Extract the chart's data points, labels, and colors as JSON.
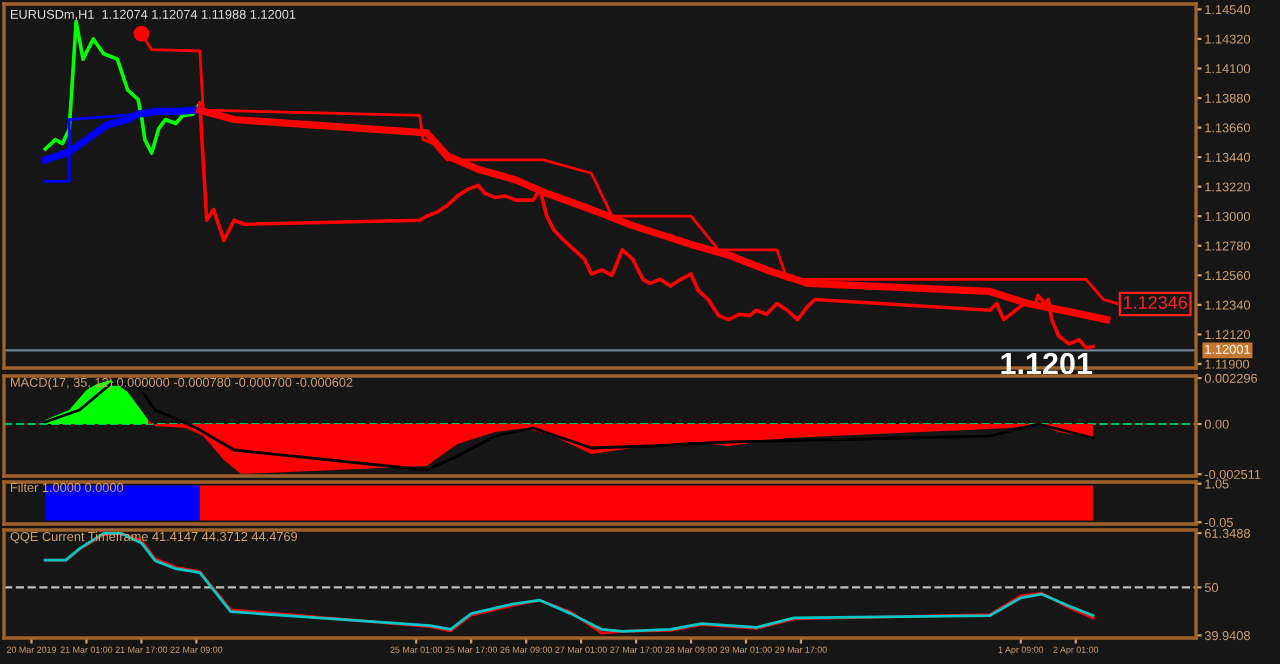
{
  "chart_data": [
    {
      "type": "line",
      "title": "EURUSDm,H1  1.12074 1.12074 1.11988 1.12001",
      "xlim": [
        "2019-03-20T01:00",
        "2019-04-03T12:00"
      ],
      "ylim": [
        1.1187,
        1.1458
      ],
      "tick_labels": "y",
      "yticks": [
        {
          "value": 1.1454,
          "label": "1.14540"
        },
        {
          "value": 1.1432,
          "label": "1.14320"
        },
        {
          "value": 1.141,
          "label": "1.14100"
        },
        {
          "value": 1.1388,
          "label": "1.13880"
        },
        {
          "value": 1.1366,
          "label": "1.13660"
        },
        {
          "value": 1.1344,
          "label": "1.13440"
        },
        {
          "value": 1.1322,
          "label": "1.13220"
        },
        {
          "value": 1.13,
          "label": "1.13000"
        },
        {
          "value": 1.1278,
          "label": "1.12780"
        },
        {
          "value": 1.1256,
          "label": "1.12560"
        },
        {
          "value": 1.1234,
          "label": "1.12340"
        },
        {
          "value": 1.1212,
          "label": "1.12120"
        },
        {
          "value": 1.119,
          "label": "1.11900"
        }
      ],
      "series": [
        {
          "color": "#00ff00",
          "x": [
            "2019-03-20T13:00",
            "2019-03-20T16:00",
            "2019-03-20T18:00",
            "2019-03-20T20:00",
            "2019-03-20T22:00",
            "2019-03-21T00:00",
            "2019-03-21T03:00",
            "2019-03-21T06:00",
            "2019-03-21T10:00",
            "2019-03-21T13:00",
            "2019-03-21T16:00",
            "2019-03-21T17:00",
            "2019-03-21T18:00",
            "2019-03-21T20:00",
            "2019-03-21T22:00",
            "2019-03-22T00:00",
            "2019-03-22T03:00",
            "2019-03-22T05:00",
            "2019-03-22T08:00",
            "2019-03-22T10:00"
          ],
          "values": [
            1.135,
            1.1357,
            1.1354,
            1.1365,
            1.1445,
            1.1417,
            1.1432,
            1.1421,
            1.1417,
            1.1394,
            1.1387,
            1.1375,
            1.1357,
            1.1347,
            1.1365,
            1.1372,
            1.1369,
            1.1375,
            1.1376,
            1.1384
          ]
        },
        {
          "color": "#ff0000",
          "x": [
            "2019-03-22T10:00",
            "2019-03-22T12:00",
            "2019-03-22T14:00",
            "2019-03-22T17:00",
            "2019-03-22T20:00",
            "2019-03-22T23:00",
            "2019-03-25T02:00",
            "2019-03-25T04:00",
            "2019-03-25T07:00",
            "2019-03-25T10:00",
            "2019-03-25T13:00",
            "2019-03-25T16:00",
            "2019-03-25T19:00",
            "2019-03-25T21:00",
            "2019-03-26T00:00",
            "2019-03-26T03:00",
            "2019-03-26T06:00",
            "2019-03-26T09:00",
            "2019-03-26T11:00",
            "2019-03-26T13:00",
            "2019-03-26T15:00",
            "2019-03-26T17:00",
            "2019-03-26T20:00",
            "2019-03-26T23:00",
            "2019-03-27T02:00",
            "2019-03-27T04:00",
            "2019-03-27T07:00",
            "2019-03-27T10:00",
            "2019-03-27T13:00",
            "2019-03-27T16:00",
            "2019-03-27T19:00",
            "2019-03-27T21:00",
            "2019-03-28T00:00",
            "2019-03-28T03:00",
            "2019-03-28T06:00",
            "2019-03-28T09:00",
            "2019-03-28T11:00",
            "2019-03-28T14:00",
            "2019-03-28T17:00",
            "2019-03-28T20:00",
            "2019-03-28T23:00",
            "2019-03-29T02:00",
            "2019-03-29T04:00",
            "2019-03-29T07:00",
            "2019-03-29T10:00",
            "2019-03-29T13:00",
            "2019-03-29T16:00",
            "2019-03-29T19:00",
            "2019-03-29T21:00",
            "2019-04-01T00:00",
            "2019-04-01T02:00",
            "2019-04-01T04:00",
            "2019-04-01T07:00",
            "2019-04-01T10:00",
            "2019-04-01T13:00",
            "2019-04-01T14:00",
            "2019-04-01T16:00",
            "2019-04-01T17:00",
            "2019-04-01T18:00",
            "2019-04-01T20:00",
            "2019-04-01T23:00",
            "2019-04-02T02:00",
            "2019-04-02T04:00",
            "2019-04-02T06:00"
          ],
          "values": [
            1.1384,
            1.1297,
            1.1305,
            1.1282,
            1.1297,
            1.1294,
            1.1297,
            1.13,
            1.1303,
            1.1308,
            1.1315,
            1.132,
            1.1323,
            1.1317,
            1.1314,
            1.1315,
            1.1312,
            1.1312,
            1.1312,
            1.132,
            1.13,
            1.129,
            1.1282,
            1.1275,
            1.1268,
            1.1257,
            1.126,
            1.1256,
            1.1275,
            1.1268,
            1.1253,
            1.125,
            1.1253,
            1.1248,
            1.1253,
            1.1257,
            1.1245,
            1.1238,
            1.1226,
            1.1223,
            1.1227,
            1.1226,
            1.123,
            1.1227,
            1.1235,
            1.123,
            1.1223,
            1.1233,
            1.1238,
            1.123,
            1.1235,
            1.1223,
            1.1229,
            1.1235,
            1.1233,
            1.1241,
            1.1235,
            1.1238,
            1.1223,
            1.1211,
            1.1205,
            1.1208,
            1.1202,
            1.1203
          ]
        },
        {
          "color": "#0000ff",
          "x": [
            "2019-03-20T13:00",
            "2019-03-20T20:00",
            "2019-03-21T01:00",
            "2019-03-21T07:00",
            "2019-03-21T13:00",
            "2019-03-21T16:00",
            "2019-03-21T21:00",
            "2019-03-22T03:00",
            "2019-03-22T10:00"
          ],
          "values": [
            1.1342,
            1.1348,
            1.1357,
            1.1368,
            1.1372,
            1.1376,
            1.1378,
            1.1378,
            1.1379
          ]
        },
        {
          "color": "#ff0000",
          "x": [
            "2019-03-22T10:00",
            "2019-03-22T20:00",
            "2019-03-25T04:00",
            "2019-03-25T10:00",
            "2019-03-25T19:00",
            "2019-03-26T06:00",
            "2019-03-26T14:00",
            "2019-03-27T04:00",
            "2019-03-27T16:00",
            "2019-03-28T09:00",
            "2019-03-28T20:00",
            "2019-03-29T07:00",
            "2019-03-29T19:00",
            "2019-04-01T00:00",
            "2019-04-01T11:00",
            "2019-04-01T23:00",
            "2019-04-02T10:00"
          ],
          "values": [
            1.1379,
            1.1372,
            1.1362,
            1.1345,
            1.1335,
            1.1327,
            1.1318,
            1.1305,
            1.1293,
            1.1279,
            1.1271,
            1.126,
            1.125,
            1.1244,
            1.1235,
            1.1229,
            1.1223
          ]
        },
        {
          "color": "#0000ff",
          "x": [
            "2019-03-20T13:00",
            "2019-03-20T20:00",
            "2019-03-20T20:00",
            "2019-03-21T16:00"
          ],
          "values": [
            1.1326,
            1.1326,
            1.1372,
            1.1376
          ]
        },
        {
          "color": "#ff0000",
          "x": [
            "2019-03-21T17:00",
            "2019-03-21T20:00",
            "2019-03-22T10:00",
            "2019-03-22T11:00",
            "2019-03-25T02:00",
            "2019-03-25T03:00",
            "2019-03-25T06:00",
            "2019-03-25T10:00",
            "2019-03-26T14:00",
            "2019-03-27T04:00",
            "2019-03-27T10:00",
            "2019-03-28T09:00",
            "2019-03-28T17:00",
            "2019-03-29T10:00",
            "2019-03-29T13:00",
            "2019-04-02T04:00",
            "2019-04-02T09:00",
            "2019-04-02T13:00"
          ],
          "values": [
            1.1436,
            1.1424,
            1.1423,
            1.1379,
            1.1375,
            1.1357,
            1.1354,
            1.1342,
            1.1342,
            1.1332,
            1.13,
            1.13,
            1.1275,
            1.1275,
            1.1253,
            1.1253,
            1.1238,
            1.1235
          ]
        },
        {
          "type": "scatter",
          "marker": "circle",
          "color": "#ff0000",
          "x": [
            "2019-03-21T17:00"
          ],
          "values": [
            1.1436
          ]
        }
      ],
      "ref_lines": [
        {
          "axis": "y",
          "value": 1.12001,
          "label": "1.12001",
          "color": "#708090"
        }
      ],
      "annotations": [
        {
          "text": "1.12346",
          "x": "2019-04-02T13:00",
          "y": 1.12346
        },
        {
          "text": "1.1201",
          "x": "2019-04-02T06:00",
          "y": 1.1201
        }
      ]
    },
    {
      "type": "area",
      "title": "MACD(17, 35, 12) 0.000000 -0.000780 -0.000700 -0.000602",
      "xlim": [
        "2019-03-20T01:00",
        "2019-04-03T12:00"
      ],
      "ylim": [
        -0.0026,
        0.0024
      ],
      "tick_labels": "y",
      "yticks": [
        {
          "value": 0.002296,
          "label": "0.002296"
        },
        {
          "value": 0,
          "label": "0.00"
        },
        {
          "value": -0.002511,
          "label": "-0.002511"
        }
      ],
      "series": [
        {
          "color": "#00ff00",
          "x": [
            "2019-03-20T13:00",
            "2019-03-20T20:00",
            "2019-03-21T01:00",
            "2019-03-21T04:00",
            "2019-03-21T08:00",
            "2019-03-21T13:00",
            "2019-03-21T19:00"
          ],
          "values": [
            0.0002,
            0.0007,
            0.0017,
            0.002,
            0.0022,
            0.0016,
            0.0002
          ]
        },
        {
          "color": "#ff0000",
          "x": [
            "2019-03-21T19:00",
            "2019-03-21T21:00",
            "2019-03-22T06:00",
            "2019-03-22T11:00",
            "2019-03-22T17:00",
            "2019-03-22T22:00",
            "2019-03-25T04:00",
            "2019-03-25T13:00",
            "2019-03-26T00:00",
            "2019-03-26T09:00",
            "2019-03-26T17:00",
            "2019-03-27T04:00",
            "2019-03-27T16:00",
            "2019-03-28T09:00",
            "2019-03-28T20:00",
            "2019-03-29T13:00",
            "2019-04-01T06:00",
            "2019-04-01T14:00",
            "2019-04-01T20:00",
            "2019-04-02T06:00"
          ],
          "values": [
            0.0002,
            -0.0001,
            -0.0002,
            -0.0006,
            -0.0018,
            -0.0025,
            -0.0021,
            -0.001,
            -0.0004,
            -0.0002,
            -0.0006,
            -0.0015,
            -0.0012,
            -0.0009,
            -0.0011,
            -0.0007,
            -0.0002,
            0,
            -0.0004,
            -0.0007
          ]
        },
        {
          "type": "line",
          "color": "#000000",
          "x": [
            "2019-03-20T13:00",
            "2019-03-20T23:00",
            "2019-03-21T08:00",
            "2019-03-21T16:00",
            "2019-03-21T21:00",
            "2019-03-22T09:00",
            "2019-03-22T20:00",
            "2019-03-25T04:00",
            "2019-03-25T13:00",
            "2019-03-26T00:00",
            "2019-03-26T11:00",
            "2019-03-27T04:00",
            "2019-03-27T21:00",
            "2019-03-28T20:00",
            "2019-04-01T00:00",
            "2019-04-01T14:00",
            "2019-04-02T06:00"
          ],
          "values": [
            0.0001,
            0.0007,
            0.002,
            0.0019,
            0.0007,
            -0.0002,
            -0.0013,
            -0.0023,
            -0.0016,
            -0.0006,
            -0.0002,
            -0.0012,
            -0.0011,
            -0.0009,
            -0.0006,
            0,
            -0.0007
          ]
        }
      ],
      "ref_lines": [
        {
          "axis": "y",
          "value": 0,
          "color": "#00c060",
          "line_style": "dashed"
        }
      ]
    },
    {
      "type": "area",
      "title": "Filter 1.0000 0.0000",
      "xlim": [
        "2019-03-20T01:00",
        "2019-04-03T12:00"
      ],
      "ylim": [
        -0.1,
        1.1
      ],
      "tick_labels": "y",
      "yticks": [
        {
          "value": 1.05,
          "label": "1.05"
        },
        {
          "value": -0.05,
          "label": "-0.05"
        }
      ],
      "series": [
        {
          "color": "#0000ff",
          "x": [
            "2019-03-20T13:00",
            "2019-03-22T10:00"
          ],
          "values": [
            1,
            1
          ]
        },
        {
          "color": "#ff0000",
          "x": [
            "2019-03-22T10:00",
            "2019-04-02T06:00"
          ],
          "values": [
            1,
            1
          ]
        }
      ]
    },
    {
      "type": "line",
      "title": "QQE Current Timeframe 41.4147 44.3712 44.4769",
      "xlim": [
        "2019-03-20T01:00",
        "2019-04-03T12:00"
      ],
      "ylim": [
        39.4,
        62.0
      ],
      "yticks": [
        {
          "value": 61.3488,
          "label": "61.3488"
        },
        50,
        {
          "value": 39.9408,
          "label": "39.9408"
        }
      ],
      "xticks": [
        {
          "value": "2019-03-20T09:00",
          "label": "20 Mar 2019"
        },
        {
          "value": "2019-03-21T01:00",
          "label": "21 Mar 01:00"
        },
        {
          "value": "2019-03-21T17:00",
          "label": "21 Mar 17:00"
        },
        {
          "value": "2019-03-22T09:00",
          "label": "22 Mar 09:00"
        },
        {
          "value": "2019-03-25T01:00",
          "label": "25 Mar 01:00"
        },
        {
          "value": "2019-03-25T17:00",
          "label": "25 Mar 17:00"
        },
        {
          "value": "2019-03-26T09:00",
          "label": "26 Mar 09:00"
        },
        {
          "value": "2019-03-27T01:00",
          "label": "27 Mar 01:00"
        },
        {
          "value": "2019-03-27T17:00",
          "label": "27 Mar 17:00"
        },
        {
          "value": "2019-03-28T09:00",
          "label": "28 Mar 09:00"
        },
        {
          "value": "2019-03-29T01:00",
          "label": "29 Mar 01:00"
        },
        {
          "value": "2019-03-29T17:00",
          "label": "29 Mar 17:00"
        },
        {
          "value": "2019-04-01T09:00",
          "label": "1 Apr 09:00"
        },
        {
          "value": "2019-04-02T01:00",
          "label": "2 Apr 01:00"
        }
      ],
      "x": [
        "2019-03-20T13:00",
        "2019-03-20T19:00",
        "2019-03-20T23:00",
        "2019-03-21T06:00",
        "2019-03-21T11:00",
        "2019-03-21T17:00",
        "2019-03-21T21:00",
        "2019-03-22T03:00",
        "2019-03-22T10:00",
        "2019-03-22T19:00",
        "2019-03-25T05:00",
        "2019-03-25T11:00",
        "2019-03-25T17:00",
        "2019-03-26T05:00",
        "2019-03-26T13:00",
        "2019-03-26T22:00",
        "2019-03-27T07:00",
        "2019-03-27T13:00",
        "2019-03-28T03:00",
        "2019-03-28T12:00",
        "2019-03-29T04:00",
        "2019-03-29T15:00",
        "2019-04-01T00:00",
        "2019-04-01T09:00",
        "2019-04-01T15:00",
        "2019-04-01T23:00",
        "2019-04-02T06:00"
      ],
      "series": [
        {
          "color": "#ff0000",
          "values": [
            55.7,
            55.7,
            58.0,
            61.0,
            61.3,
            59.8,
            56.0,
            54.2,
            53.3,
            45.3,
            41.8,
            40.9,
            44.2,
            46.2,
            47.3,
            44.8,
            40.4,
            40.8,
            41.0,
            42.2,
            41.4,
            43.4,
            44.3,
            48.2,
            48.8,
            45.8,
            43.6
          ]
        },
        {
          "color": "#00c8c8",
          "values": [
            55.7,
            55.7,
            58.1,
            61.3,
            61.3,
            59.3,
            55.6,
            53.9,
            53.1,
            44.9,
            42.0,
            41.2,
            44.5,
            46.5,
            47.3,
            44.5,
            41.2,
            40.8,
            41.2,
            42.4,
            41.6,
            43.6,
            44.1,
            47.8,
            48.6,
            46.1,
            44.1
          ]
        }
      ],
      "ref_lines": [
        {
          "axis": "y",
          "value": 50,
          "color": "#c0c0c0",
          "line_style": "dashed"
        }
      ]
    }
  ]
}
